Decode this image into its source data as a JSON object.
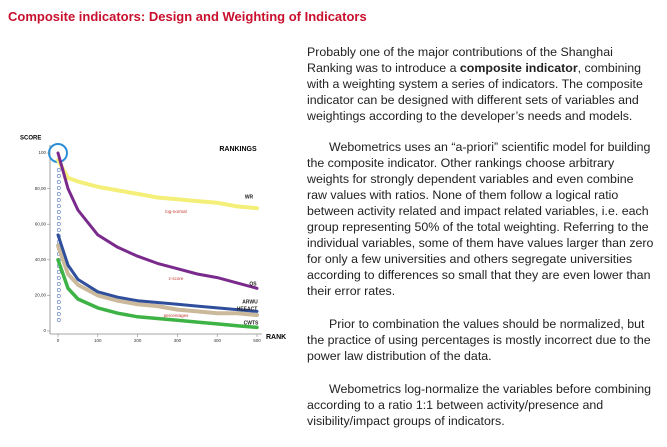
{
  "header": {
    "title": "Composite indicators: Design and Weighting of Indicators"
  },
  "paragraphs": [
    [
      "Probably one of the major contributions of the Shanghai Ranking was to introduce a ",
      "composite indicator",
      ", combining with a weighting system a series of indicators.  The composite indicator can be designed with different sets of variables and weightings according to the developer’s needs and models."
    ],
    "Webometrics uses an “a-priori” scientific model for building the composite indicator. Other rankings choose arbitrary weights for strongly dependent variables and even combine raw values with ratios. None of them follow a logical ratio between activity related and impact related variables, i.e. each group representing 50% of the total weighting. Referring to the individual variables, some of them have values larger than zero for only a few universities and others segregate universities according to differences so small that they are even lower than their error rates.",
    "Prior to combination the values should be normalized, but the practice of using percentages is mostly incorrect due to the power law distribution of the data.",
    "Webometrics log-normalize the variables before combining according to a ratio 1:1 between activity/presence and visibility/impact groups of indicators."
  ],
  "chart_data": {
    "type": "line",
    "title": "RANKINGS",
    "y_label": "SCORE",
    "x_label": "RANK",
    "x": [
      0,
      25,
      50,
      100,
      150,
      200,
      250,
      300,
      350,
      400,
      450,
      500
    ],
    "xlim": [
      0,
      500
    ],
    "xticks": [
      0,
      100,
      200,
      300,
      400,
      500
    ],
    "ylim": [
      0,
      100
    ],
    "yticks": [
      0,
      {
        "value": 20,
        "label": "20,00"
      },
      {
        "value": 40,
        "label": "40,00"
      },
      {
        "value": 60,
        "label": "60,00"
      },
      {
        "value": 80,
        "label": "80,00"
      },
      100
    ],
    "series": [
      {
        "name": "WR",
        "color": "#f4ef78",
        "values": [
          96,
          86,
          84,
          81,
          79,
          77,
          75,
          74,
          73,
          72,
          70,
          69
        ]
      },
      {
        "name": "QS",
        "color": "#7a2a8c",
        "values": [
          100,
          80,
          68,
          54,
          47,
          42,
          38,
          35,
          32,
          30,
          27,
          24
        ]
      },
      {
        "name": "ARWU",
        "color": "#cbb99b",
        "values": [
          48,
          32,
          26,
          20,
          17,
          15,
          14,
          12,
          11,
          10,
          10,
          9
        ]
      },
      {
        "name": "HEEACT",
        "color": "#2f4f9c",
        "values": [
          54,
          37,
          29,
          22,
          19,
          17,
          16,
          15,
          14,
          13,
          12,
          11
        ]
      },
      {
        "name": "CWTS",
        "color": "#3db346",
        "values": [
          40,
          24,
          18,
          13,
          10,
          8,
          7,
          6,
          5,
          4,
          3,
          2
        ]
      }
    ],
    "annotations": [
      "log-normal",
      "z-score",
      "percentages"
    ]
  }
}
